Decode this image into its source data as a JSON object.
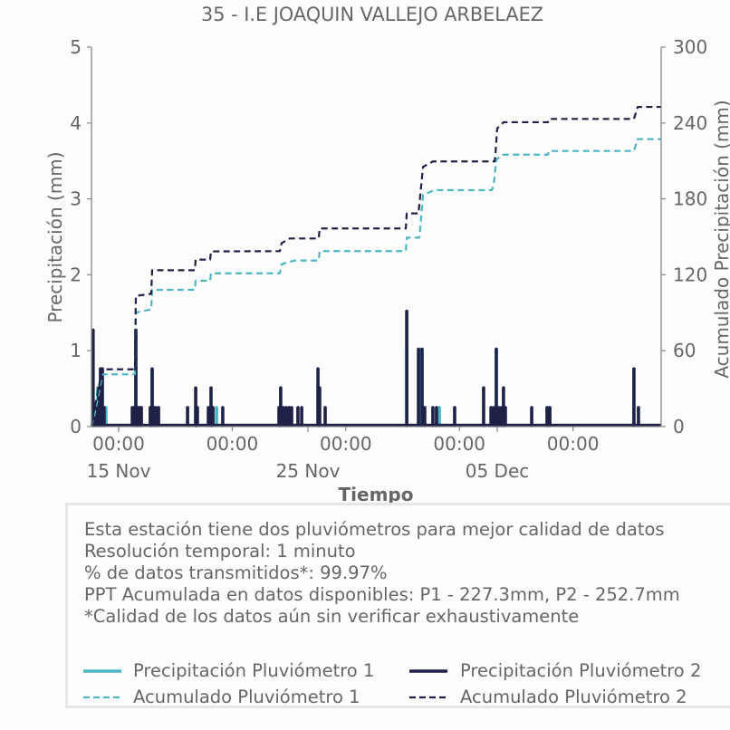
{
  "chart_data": {
    "type": "line",
    "title": "35 - I.E JOAQUIN VALLEJO ARBELAEZ",
    "xlabel": "Tiempo",
    "ylabel": "Precipitación (mm)",
    "ylabel_right": "Acumulado Precipitación (mm)",
    "x_days_from_15_Nov": true,
    "xlim": [
      -1.435,
      28.66
    ],
    "ylim": [
      0,
      5
    ],
    "ylim_right": [
      0,
      300
    ],
    "grid": false,
    "legend_position": "bottom",
    "yticks": [
      {
        "value": 0,
        "label": "0"
      },
      {
        "value": 1,
        "label": "1"
      },
      {
        "value": 2,
        "label": "2"
      },
      {
        "value": 3,
        "label": "3"
      },
      {
        "value": 4,
        "label": "4"
      },
      {
        "value": 5,
        "label": "5"
      }
    ],
    "yticks_right": [
      {
        "value": 0,
        "label": "0"
      },
      {
        "value": 60,
        "label": "60"
      },
      {
        "value": 120,
        "label": "120"
      },
      {
        "value": 180,
        "label": "180"
      },
      {
        "value": 240,
        "label": "240"
      },
      {
        "value": 300,
        "label": "300"
      }
    ],
    "xticks_minor": [
      {
        "x": 0,
        "label": "00:00"
      },
      {
        "x": 6,
        "label": "00:00"
      },
      {
        "x": 12,
        "label": "00:00"
      },
      {
        "x": 18,
        "label": "00:00"
      },
      {
        "x": 24,
        "label": "00:00"
      }
    ],
    "xticks_major": [
      {
        "x": 0,
        "label": "15 Nov"
      },
      {
        "x": 10,
        "label": "25 Nov"
      },
      {
        "x": 20,
        "label": "05 Dec"
      }
    ],
    "series": [
      {
        "name": "Precipitación Pluviómetro 1",
        "kind": "bar",
        "axis": "left",
        "style": "solid",
        "color": "#4db6c4",
        "points": [
          [
            -1.34,
            0.25
          ],
          [
            -1.1,
            0.51
          ],
          [
            -0.91,
            0.76
          ],
          [
            -0.67,
            0.25
          ],
          [
            0.91,
            1.27
          ],
          [
            1.15,
            0.25
          ],
          [
            1.77,
            0.76
          ],
          [
            4.07,
            0.25
          ],
          [
            4.88,
            0.25
          ],
          [
            5.17,
            0.25
          ],
          [
            8.56,
            0.51
          ],
          [
            10.53,
            0.51
          ],
          [
            15.22,
            1.02
          ],
          [
            15.93,
            1.02
          ],
          [
            16.94,
            0.25
          ],
          [
            19.95,
            1.02
          ],
          [
            22.73,
            0.25
          ],
          [
            27.22,
            0.76
          ]
        ]
      },
      {
        "name": "Precipitación Pluviómetro 2",
        "kind": "bar",
        "axis": "left",
        "style": "solid",
        "color": "#1f2147",
        "points": [
          [
            -1.35,
            1.27
          ],
          [
            -1.27,
            0.25
          ],
          [
            -1.2,
            0.25
          ],
          [
            -1.05,
            0.51
          ],
          [
            -0.96,
            0.76
          ],
          [
            -0.86,
            0.76
          ],
          [
            -0.77,
            0.25
          ],
          [
            0.72,
            0.25
          ],
          [
            0.81,
            0.25
          ],
          [
            0.91,
            1.27
          ],
          [
            1.0,
            0.25
          ],
          [
            1.1,
            0.25
          ],
          [
            1.2,
            0.25
          ],
          [
            1.67,
            0.25
          ],
          [
            1.77,
            0.76
          ],
          [
            1.87,
            0.25
          ],
          [
            1.96,
            0.25
          ],
          [
            2.11,
            0.25
          ],
          [
            3.64,
            0.25
          ],
          [
            4.07,
            0.51
          ],
          [
            4.16,
            0.25
          ],
          [
            4.74,
            0.25
          ],
          [
            4.88,
            0.51
          ],
          [
            4.98,
            0.25
          ],
          [
            5.5,
            0.25
          ],
          [
            8.47,
            0.25
          ],
          [
            8.56,
            0.51
          ],
          [
            8.71,
            0.25
          ],
          [
            8.85,
            0.25
          ],
          [
            9.0,
            0.25
          ],
          [
            9.14,
            0.25
          ],
          [
            9.47,
            0.25
          ],
          [
            9.67,
            0.25
          ],
          [
            10.53,
            0.76
          ],
          [
            10.62,
            0.51
          ],
          [
            10.91,
            0.25
          ],
          [
            15.22,
            1.52
          ],
          [
            15.84,
            1.02
          ],
          [
            16.03,
            1.02
          ],
          [
            16.17,
            0.25
          ],
          [
            16.6,
            0.25
          ],
          [
            16.79,
            0.25
          ],
          [
            17.75,
            0.25
          ],
          [
            19.28,
            0.51
          ],
          [
            19.67,
            0.25
          ],
          [
            19.81,
            0.25
          ],
          [
            19.95,
            1.02
          ],
          [
            20.1,
            0.25
          ],
          [
            20.24,
            0.25
          ],
          [
            20.33,
            0.51
          ],
          [
            20.43,
            0.25
          ],
          [
            21.82,
            0.25
          ],
          [
            22.63,
            0.25
          ],
          [
            22.78,
            0.25
          ],
          [
            27.22,
            0.76
          ],
          [
            27.46,
            0.25
          ]
        ]
      },
      {
        "name": "Acumulado Pluviómetro 1",
        "kind": "line",
        "axis": "right",
        "style": "dashed",
        "color": "#4db6c4",
        "points": [
          [
            -1.435,
            0
          ],
          [
            -1.34,
            5
          ],
          [
            -1.2,
            15
          ],
          [
            -1.0,
            30
          ],
          [
            -0.86,
            41.3
          ],
          [
            0.86,
            41.3
          ],
          [
            0.91,
            90.2
          ],
          [
            1.72,
            92.6
          ],
          [
            1.77,
            108.1
          ],
          [
            4.02,
            108.1
          ],
          [
            4.07,
            115.3
          ],
          [
            4.83,
            115.3
          ],
          [
            4.88,
            121.2
          ],
          [
            8.52,
            121.2
          ],
          [
            8.61,
            128.4
          ],
          [
            9.28,
            131.3
          ],
          [
            10.57,
            131.3
          ],
          [
            10.62,
            138.7
          ],
          [
            15.17,
            138.7
          ],
          [
            15.22,
            149.4
          ],
          [
            15.89,
            149.4
          ],
          [
            16.08,
            183.3
          ],
          [
            16.7,
            186.9
          ],
          [
            19.71,
            186.9
          ],
          [
            19.81,
            190.4
          ],
          [
            19.95,
            211.2
          ],
          [
            20.33,
            215
          ],
          [
            22.68,
            215
          ],
          [
            22.73,
            217.9
          ],
          [
            27.22,
            217.9
          ],
          [
            27.42,
            227.3
          ],
          [
            28.66,
            227.3
          ]
        ]
      },
      {
        "name": "Acumulado Pluviómetro 2",
        "kind": "line",
        "axis": "right",
        "style": "dashed",
        "color": "#1f2147",
        "points": [
          [
            -1.435,
            0
          ],
          [
            -1.34,
            10
          ],
          [
            -1.2,
            20
          ],
          [
            -1.0,
            35
          ],
          [
            -0.86,
            45.3
          ],
          [
            0.86,
            45.3
          ],
          [
            0.91,
            103.3
          ],
          [
            1.72,
            105
          ],
          [
            1.77,
            123.6
          ],
          [
            4.02,
            123.6
          ],
          [
            4.07,
            132
          ],
          [
            4.83,
            132
          ],
          [
            4.88,
            138.5
          ],
          [
            8.52,
            138.7
          ],
          [
            8.61,
            145
          ],
          [
            9.04,
            148.7
          ],
          [
            10.57,
            148.7
          ],
          [
            10.62,
            156.6
          ],
          [
            15.17,
            156.6
          ],
          [
            15.22,
            168.5
          ],
          [
            15.84,
            168.5
          ],
          [
            16.08,
            205.3
          ],
          [
            16.6,
            209.6
          ],
          [
            19.86,
            209.6
          ],
          [
            19.9,
            214.3
          ],
          [
            20.0,
            235.8
          ],
          [
            20.33,
            240.6
          ],
          [
            22.68,
            240.6
          ],
          [
            22.73,
            243.2
          ],
          [
            27.22,
            243.2
          ],
          [
            27.42,
            252.7
          ],
          [
            28.66,
            252.7
          ]
        ]
      }
    ]
  },
  "info_box": {
    "lines": [
      "Esta estación tiene dos pluviómetros para mejor calidad de datos",
      "Resolución temporal: 1 minuto",
      "% de datos transmitidos*: 99.97%",
      "PPT Acumulada en datos disponibles: P1 - 227.3mm, P2 - 252.7mm",
      "*Calidad de los datos aún sin verificar exhaustivamente"
    ]
  },
  "colors": {
    "pluviometro_1": "#4db6c4",
    "pluviometro_2": "#1f2147",
    "text": "#666666",
    "axis": "#888888",
    "box_border": "#e6e6e6"
  }
}
